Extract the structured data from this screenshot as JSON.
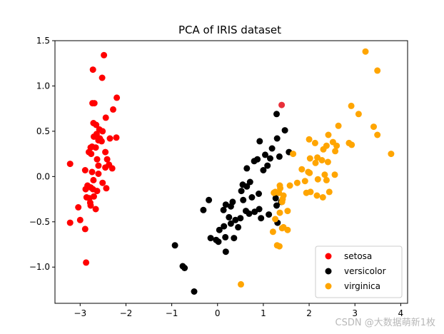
{
  "chart_data": {
    "type": "scatter",
    "title": "PCA of IRIS dataset",
    "xlabel": "",
    "ylabel": "",
    "xlim": [
      -3.55,
      4.15
    ],
    "ylim": [
      -1.4,
      1.5
    ],
    "xticks": [
      -3,
      -2,
      -1,
      0,
      1,
      2,
      3,
      4
    ],
    "yticks": [
      -1.0,
      -0.5,
      0.0,
      0.5,
      1.0,
      1.5
    ],
    "xtick_labels": [
      "−3",
      "−2",
      "−1",
      "0",
      "1",
      "2",
      "3",
      "4"
    ],
    "ytick_labels": [
      "−1.0",
      "−0.5",
      "0.0",
      "0.5",
      "1.0",
      "1.5"
    ],
    "legend_position": "lower-right",
    "series": [
      {
        "name": "setosa",
        "color": "#ff0000",
        "points": [
          [
            -2.48,
            1.34
          ],
          [
            -2.72,
            1.18
          ],
          [
            -2.52,
            1.09
          ],
          [
            -2.2,
            0.87
          ],
          [
            -2.73,
            0.81
          ],
          [
            -2.69,
            0.81
          ],
          [
            -2.28,
            0.74
          ],
          [
            -2.44,
            0.65
          ],
          [
            -2.71,
            0.59
          ],
          [
            -2.65,
            0.57
          ],
          [
            -2.58,
            0.52
          ],
          [
            -2.51,
            0.5
          ],
          [
            -2.64,
            0.47
          ],
          [
            -2.7,
            0.44
          ],
          [
            -2.57,
            0.42
          ],
          [
            -2.21,
            0.43
          ],
          [
            -2.35,
            0.42
          ],
          [
            -2.6,
            0.4
          ],
          [
            -2.53,
            0.39
          ],
          [
            -2.74,
            0.33
          ],
          [
            -2.66,
            0.32
          ],
          [
            -2.77,
            0.32
          ],
          [
            -2.81,
            0.27
          ],
          [
            -2.45,
            0.27
          ],
          [
            -2.76,
            0.25
          ],
          [
            -2.63,
            0.19
          ],
          [
            -2.41,
            0.19
          ],
          [
            -3.22,
            0.14
          ],
          [
            -2.37,
            0.13
          ],
          [
            -2.6,
            0.12
          ],
          [
            -2.45,
            0.1
          ],
          [
            -2.3,
            0.09
          ],
          [
            -2.89,
            0.07
          ],
          [
            -2.74,
            0.05
          ],
          [
            -2.6,
            0.03
          ],
          [
            -2.71,
            -0.04
          ],
          [
            -2.51,
            -0.07
          ],
          [
            -2.84,
            -0.1
          ],
          [
            -2.77,
            -0.12
          ],
          [
            -2.43,
            -0.13
          ],
          [
            -2.72,
            -0.14
          ],
          [
            -2.63,
            -0.16
          ],
          [
            -2.88,
            -0.14
          ],
          [
            -2.7,
            -0.22
          ],
          [
            -2.8,
            -0.24
          ],
          [
            -2.86,
            -0.23
          ],
          [
            -2.77,
            -0.32
          ],
          [
            -2.78,
            -0.29
          ],
          [
            -3.04,
            -0.34
          ],
          [
            -2.66,
            -0.36
          ],
          [
            -3.0,
            -0.48
          ],
          [
            -3.22,
            -0.51
          ],
          [
            -2.89,
            -0.58
          ],
          [
            -2.87,
            -0.95
          ]
        ]
      },
      {
        "name": "versicolor",
        "color": "#000000",
        "points": [
          [
            1.29,
            0.69
          ],
          [
            1.47,
            0.51
          ],
          [
            0.92,
            0.39
          ],
          [
            1.3,
            0.42
          ],
          [
            1.56,
            0.27
          ],
          [
            1.19,
            0.31
          ],
          [
            1.04,
            0.24
          ],
          [
            1.15,
            0.2
          ],
          [
            1.35,
            0.22
          ],
          [
            0.87,
            0.19
          ],
          [
            0.8,
            0.17
          ],
          [
            1.09,
            0.12
          ],
          [
            0.64,
            0.09
          ],
          [
            1.0,
            0.07
          ],
          [
            0.71,
            -0.06
          ],
          [
            0.55,
            -0.09
          ],
          [
            0.64,
            -0.11
          ],
          [
            0.52,
            -0.16
          ],
          [
            0.9,
            -0.19
          ],
          [
            0.75,
            -0.23
          ],
          [
            0.33,
            -0.28
          ],
          [
            0.56,
            -0.26
          ],
          [
            0.29,
            -0.33
          ],
          [
            0.18,
            -0.31
          ],
          [
            0.13,
            -0.37
          ],
          [
            0.91,
            -0.36
          ],
          [
            0.62,
            -0.38
          ],
          [
            0.69,
            -0.41
          ],
          [
            1.12,
            -0.42
          ],
          [
            1.29,
            -0.32
          ],
          [
            1.27,
            -0.24
          ],
          [
            1.39,
            -0.28
          ],
          [
            0.81,
            -0.39
          ],
          [
            1.31,
            -0.51
          ],
          [
            0.95,
            -0.46
          ],
          [
            0.5,
            -0.46
          ],
          [
            0.25,
            -0.45
          ],
          [
            0.39,
            -0.48
          ],
          [
            0.29,
            -0.52
          ],
          [
            0.14,
            -0.55
          ],
          [
            0.45,
            -0.56
          ],
          [
            -0.19,
            -0.26
          ],
          [
            -0.31,
            -0.37
          ],
          [
            -0.15,
            -0.68
          ],
          [
            -0.03,
            -0.7
          ],
          [
            0.02,
            -0.72
          ],
          [
            0.04,
            -0.59
          ],
          [
            0.17,
            -0.67
          ],
          [
            0.36,
            -0.68
          ],
          [
            0.18,
            -0.83
          ],
          [
            -0.93,
            -0.76
          ],
          [
            -0.76,
            -0.99
          ],
          [
            -0.72,
            -1.01
          ],
          [
            -0.51,
            -1.27
          ]
        ]
      },
      {
        "name": "virginica",
        "color": "#ffa500",
        "points": [
          [
            3.23,
            1.38
          ],
          [
            3.49,
            1.17
          ],
          [
            2.92,
            0.78
          ],
          [
            3.08,
            0.69
          ],
          [
            3.41,
            0.55
          ],
          [
            2.64,
            0.56
          ],
          [
            3.49,
            0.46
          ],
          [
            2.42,
            0.46
          ],
          [
            2.52,
            0.38
          ],
          [
            2.38,
            0.34
          ],
          [
            2.0,
            0.41
          ],
          [
            2.13,
            0.37
          ],
          [
            2.31,
            0.3
          ],
          [
            2.6,
            0.34
          ],
          [
            2.87,
            0.37
          ],
          [
            2.93,
            0.35
          ],
          [
            2.57,
            0.28
          ],
          [
            1.65,
            0.25
          ],
          [
            2.18,
            0.21
          ],
          [
            2.02,
            0.2
          ],
          [
            3.79,
            0.25
          ],
          [
            2.28,
            0.18
          ],
          [
            2.41,
            0.16
          ],
          [
            2.14,
            0.15
          ],
          [
            1.84,
            0.08
          ],
          [
            1.98,
            0.05
          ],
          [
            2.01,
            0.04
          ],
          [
            2.56,
            0.02
          ],
          [
            2.34,
            0.02
          ],
          [
            2.19,
            -0.03
          ],
          [
            1.74,
            -0.07
          ],
          [
            1.91,
            -0.05
          ],
          [
            2.38,
            -0.04
          ],
          [
            1.36,
            -0.1
          ],
          [
            1.58,
            -0.1
          ],
          [
            1.37,
            -0.13
          ],
          [
            1.26,
            -0.17
          ],
          [
            1.34,
            -0.18
          ],
          [
            1.44,
            -0.21
          ],
          [
            1.23,
            -0.18
          ],
          [
            1.42,
            -0.25
          ],
          [
            1.94,
            -0.18
          ],
          [
            2.03,
            -0.17
          ],
          [
            2.17,
            -0.21
          ],
          [
            2.3,
            -0.23
          ],
          [
            2.44,
            -0.17
          ],
          [
            1.41,
            -0.28
          ],
          [
            1.53,
            -0.38
          ],
          [
            1.36,
            -0.4
          ],
          [
            1.26,
            -0.47
          ],
          [
            1.44,
            -0.56
          ],
          [
            1.41,
            -0.57
          ],
          [
            1.53,
            -0.59
          ],
          [
            1.21,
            -0.61
          ],
          [
            1.3,
            -0.76
          ],
          [
            1.35,
            -0.77
          ],
          [
            0.51,
            -1.19
          ]
        ]
      },
      {
        "name": "",
        "color": "#e8303a",
        "points": [
          [
            1.4,
            0.79
          ]
        ]
      }
    ]
  },
  "watermark": "CSDN @大数据萌新1枚"
}
